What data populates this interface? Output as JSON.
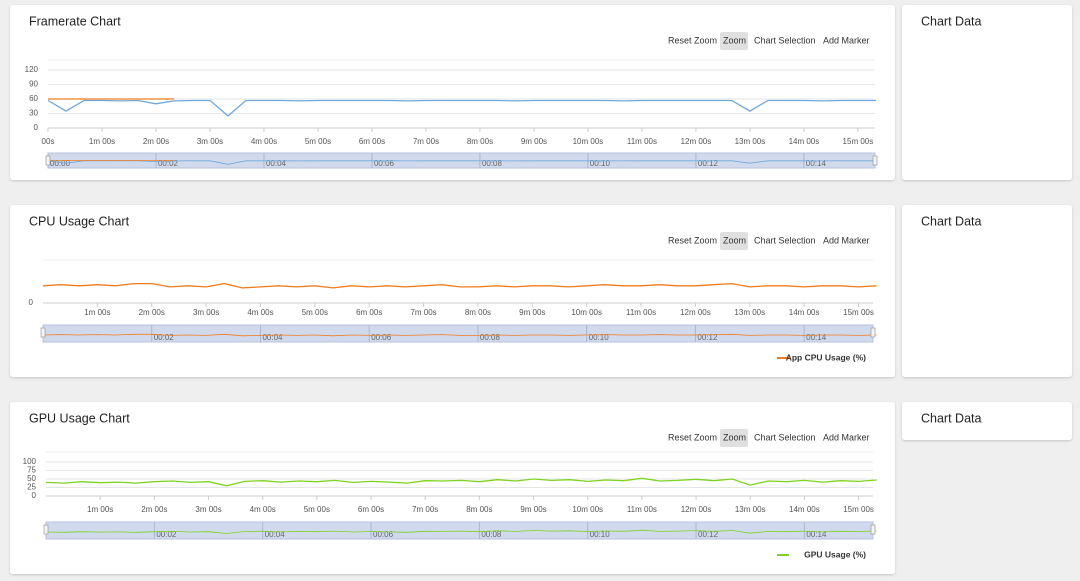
{
  "chart_data": [
    {
      "type": "line",
      "title": "Framerate Chart",
      "toolbar": [
        "Reset Zoom",
        "Zoom",
        "Chart Selection",
        "Add Marker"
      ],
      "side_title": "Chart Data",
      "x": [
        0,
        20,
        40,
        60,
        80,
        100,
        120,
        140,
        160,
        180,
        200,
        220,
        240,
        260,
        280,
        300,
        320,
        340,
        360,
        380,
        400,
        420,
        440,
        460,
        480,
        500,
        520,
        540,
        560,
        580,
        600,
        620,
        640,
        660,
        680,
        700,
        720,
        740,
        760,
        780,
        800,
        820,
        840,
        860,
        880,
        900,
        920
      ],
      "series": [
        {
          "color": "#6fa8dc",
          "values": [
            57,
            35,
            57,
            57,
            56,
            57,
            50,
            56,
            57,
            57,
            25,
            57,
            57,
            57,
            56,
            57,
            57,
            57,
            57,
            57,
            56,
            57,
            57,
            57,
            57,
            57,
            56,
            57,
            57,
            57,
            57,
            57,
            56,
            57,
            57,
            57,
            57,
            57,
            57,
            35,
            57,
            57,
            57,
            56,
            57,
            57,
            57
          ]
        },
        {
          "color": "#f07c1e",
          "values": [
            60,
            60,
            60,
            60,
            60,
            60,
            60,
            60,
            null,
            null,
            null,
            null,
            null,
            null,
            null,
            null,
            null,
            null,
            null,
            null,
            null,
            null,
            null,
            null,
            null,
            null,
            null,
            null,
            null,
            null,
            null,
            null,
            null,
            null,
            null,
            null,
            null,
            null,
            null,
            null,
            null,
            null,
            null,
            null,
            null,
            null,
            null
          ]
        }
      ],
      "xlim": [
        0,
        919
      ],
      "ylim": [
        0,
        120
      ],
      "yticks": [
        0,
        30,
        60,
        90,
        120
      ],
      "grid": true,
      "xticks": [
        {
          "value": 0,
          "label": "00s"
        },
        {
          "value": 60,
          "label": "1m 00s"
        },
        {
          "value": 120,
          "label": "2m 00s"
        },
        {
          "value": 180,
          "label": "3m 00s"
        },
        {
          "value": 240,
          "label": "4m 00s"
        },
        {
          "value": 300,
          "label": "5m 00s"
        },
        {
          "value": 360,
          "label": "6m 00s"
        },
        {
          "value": 420,
          "label": "7m 00s"
        },
        {
          "value": 480,
          "label": "8m 00s"
        },
        {
          "value": 540,
          "label": "9m 00s"
        },
        {
          "value": 600,
          "label": "10m 00s"
        },
        {
          "value": 660,
          "label": "11m 00s"
        },
        {
          "value": 720,
          "label": "12m 00s"
        },
        {
          "value": 780,
          "label": "13m 00s"
        },
        {
          "value": 840,
          "label": "14m 00s"
        },
        {
          "value": 900,
          "label": "15m 00s"
        }
      ],
      "nav_ticks": [
        {
          "value": 0,
          "label": "00:00"
        },
        {
          "value": 120,
          "label": "00:02"
        },
        {
          "value": 240,
          "label": "00:04"
        },
        {
          "value": 360,
          "label": "00:06"
        },
        {
          "value": 480,
          "label": "00:08"
        },
        {
          "value": 600,
          "label": "00:10"
        },
        {
          "value": 720,
          "label": "00:12"
        },
        {
          "value": 840,
          "label": "00:14"
        }
      ]
    },
    {
      "type": "line",
      "title": "CPU Usage Chart",
      "toolbar": [
        "Reset Zoom",
        "Zoom",
        "Chart Selection",
        "Add Marker"
      ],
      "side_title": "Chart Data",
      "x": [
        0,
        20,
        40,
        60,
        80,
        100,
        120,
        140,
        160,
        180,
        200,
        220,
        240,
        260,
        280,
        300,
        320,
        340,
        360,
        380,
        400,
        420,
        440,
        460,
        480,
        500,
        520,
        540,
        560,
        580,
        600,
        620,
        640,
        660,
        680,
        700,
        720,
        740,
        760,
        780,
        800,
        820,
        840,
        860,
        880,
        900,
        920
      ],
      "series": [
        {
          "name": "App CPU Usage (%)",
          "color": "#f07c1e",
          "values": [
            16,
            17,
            16,
            17,
            16,
            18,
            18,
            15,
            16,
            15,
            18,
            14,
            15,
            16,
            15,
            16,
            14,
            16,
            15,
            16,
            15,
            16,
            17,
            15,
            15,
            16,
            15,
            16,
            16,
            15,
            16,
            17,
            16,
            16,
            17,
            16,
            16,
            17,
            18,
            15,
            16,
            16,
            15,
            16,
            16,
            15,
            16
          ]
        }
      ],
      "xlim": [
        0,
        916
      ],
      "ylim": [
        0,
        40
      ],
      "yticks": [
        0
      ],
      "grid": true,
      "xticks": [
        {
          "value": 60,
          "label": "1m 00s"
        },
        {
          "value": 120,
          "label": "2m 00s"
        },
        {
          "value": 180,
          "label": "3m 00s"
        },
        {
          "value": 240,
          "label": "4m 00s"
        },
        {
          "value": 300,
          "label": "5m 00s"
        },
        {
          "value": 360,
          "label": "6m 00s"
        },
        {
          "value": 420,
          "label": "7m 00s"
        },
        {
          "value": 480,
          "label": "8m 00s"
        },
        {
          "value": 540,
          "label": "9m 00s"
        },
        {
          "value": 600,
          "label": "10m 00s"
        },
        {
          "value": 660,
          "label": "11m 00s"
        },
        {
          "value": 720,
          "label": "12m 00s"
        },
        {
          "value": 780,
          "label": "13m 00s"
        },
        {
          "value": 840,
          "label": "14m 00s"
        },
        {
          "value": 900,
          "label": "15m 00s"
        }
      ],
      "nav_ticks": [
        {
          "value": 120,
          "label": "00:02"
        },
        {
          "value": 240,
          "label": "00:04"
        },
        {
          "value": 360,
          "label": "00:06"
        },
        {
          "value": 480,
          "label": "00:08"
        },
        {
          "value": 600,
          "label": "00:10"
        },
        {
          "value": 720,
          "label": "00:12"
        },
        {
          "value": 840,
          "label": "00:14"
        }
      ]
    },
    {
      "type": "line",
      "title": "GPU Usage Chart",
      "toolbar": [
        "Reset Zoom",
        "Zoom",
        "Chart Selection",
        "Add Marker"
      ],
      "side_title": "Chart Data",
      "x": [
        0,
        20,
        40,
        60,
        80,
        100,
        120,
        140,
        160,
        180,
        200,
        220,
        240,
        260,
        280,
        300,
        320,
        340,
        360,
        380,
        400,
        420,
        440,
        460,
        480,
        500,
        520,
        540,
        560,
        580,
        600,
        620,
        640,
        660,
        680,
        700,
        720,
        740,
        760,
        780,
        800,
        820,
        840,
        860,
        880,
        900,
        920
      ],
      "series": [
        {
          "name": "GPU Usage (%)",
          "color": "#7ed321",
          "values": [
            40,
            38,
            42,
            39,
            41,
            38,
            42,
            44,
            40,
            42,
            30,
            43,
            45,
            41,
            44,
            42,
            46,
            40,
            43,
            41,
            38,
            45,
            44,
            46,
            42,
            48,
            44,
            50,
            46,
            48,
            43,
            47,
            45,
            52,
            44,
            46,
            49,
            45,
            50,
            32,
            44,
            42,
            46,
            41,
            45,
            43,
            47
          ]
        }
      ],
      "xlim": [
        0,
        916
      ],
      "ylim": [
        0,
        100
      ],
      "yticks": [
        0,
        25,
        50,
        75,
        100
      ],
      "grid": true,
      "xticks": [
        {
          "value": 60,
          "label": "1m 00s"
        },
        {
          "value": 120,
          "label": "2m 00s"
        },
        {
          "value": 180,
          "label": "3m 00s"
        },
        {
          "value": 240,
          "label": "4m 00s"
        },
        {
          "value": 300,
          "label": "5m 00s"
        },
        {
          "value": 360,
          "label": "6m 00s"
        },
        {
          "value": 420,
          "label": "7m 00s"
        },
        {
          "value": 480,
          "label": "8m 00s"
        },
        {
          "value": 540,
          "label": "9m 00s"
        },
        {
          "value": 600,
          "label": "10m 00s"
        },
        {
          "value": 660,
          "label": "11m 00s"
        },
        {
          "value": 720,
          "label": "12m 00s"
        },
        {
          "value": 780,
          "label": "13m 00s"
        },
        {
          "value": 840,
          "label": "14m 00s"
        },
        {
          "value": 900,
          "label": "15m 00s"
        }
      ],
      "nav_ticks": [
        {
          "value": 120,
          "label": "00:02"
        },
        {
          "value": 240,
          "label": "00:04"
        },
        {
          "value": 360,
          "label": "00:06"
        },
        {
          "value": 480,
          "label": "00:08"
        },
        {
          "value": 600,
          "label": "00:10"
        },
        {
          "value": 720,
          "label": "00:12"
        },
        {
          "value": 840,
          "label": "00:14"
        }
      ]
    }
  ]
}
